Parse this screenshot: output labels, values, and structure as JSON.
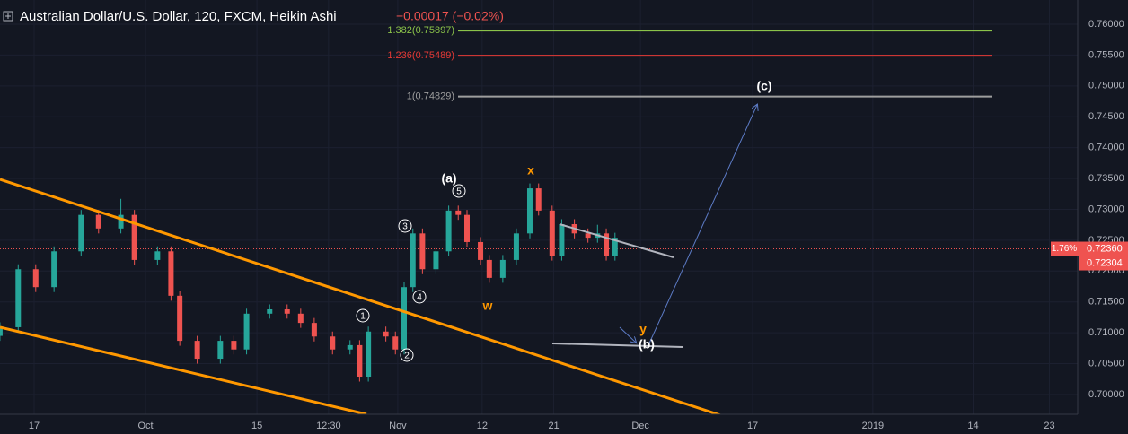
{
  "chart_data": {
    "type": "candlestick",
    "title": "Australian Dollar/U.S. Dollar, 120, FXCM, Heikin Ashi",
    "change": "−0.00017 (−0.02%)",
    "x": [
      -4.3,
      -2.0,
      0.2,
      2.5,
      5.9,
      8.1,
      10.9,
      12.6,
      15.5,
      17.2,
      18.3,
      20.5,
      23.4,
      25.1,
      26.7,
      29.6,
      31.8,
      33.5,
      35.2,
      37.5,
      39.7,
      40.9,
      42.0,
      44.2,
      45.4,
      46.5,
      47.6,
      48.8,
      50.5,
      52.1,
      53.3,
      54.4,
      56.1,
      57.2,
      58.9,
      60.6,
      62.3,
      63.4,
      65.1,
      66.3,
      67.9,
      69.6,
      70.8,
      71.9,
      73.0
    ],
    "open": [
      0.7095,
      0.7109,
      0.7203,
      0.7174,
      0.7232,
      0.7291,
      0.7269,
      0.7291,
      0.7218,
      0.7232,
      0.716,
      0.7087,
      0.7058,
      0.7087,
      0.7073,
      0.7131,
      0.7138,
      0.7131,
      0.7116,
      0.7094,
      0.7073,
      0.708,
      0.7029,
      0.7102,
      0.7094,
      0.7073,
      0.7174,
      0.7261,
      0.7203,
      0.7232,
      0.7298,
      0.7291,
      0.7247,
      0.7218,
      0.7189,
      0.7218,
      0.7261,
      0.7334,
      0.7298,
      0.7225,
      0.7276,
      0.7261,
      0.7254,
      0.7261,
      0.7225
    ],
    "high": [
      0.7117,
      0.7211,
      0.7211,
      0.724,
      0.7299,
      0.7299,
      0.7317,
      0.7299,
      0.724,
      0.724,
      0.7168,
      0.7095,
      0.7095,
      0.7095,
      0.7139,
      0.7146,
      0.7146,
      0.7139,
      0.7124,
      0.7102,
      0.7088,
      0.7088,
      0.711,
      0.711,
      0.7102,
      0.7182,
      0.7269,
      0.7269,
      0.724,
      0.7306,
      0.7306,
      0.7299,
      0.7255,
      0.7226,
      0.7226,
      0.7269,
      0.7342,
      0.7342,
      0.7306,
      0.7284,
      0.7284,
      0.7269,
      0.7275,
      0.7269,
      0.7262
    ],
    "low": [
      0.7087,
      0.7101,
      0.7166,
      0.7166,
      0.7224,
      0.7261,
      0.7261,
      0.721,
      0.721,
      0.7152,
      0.7079,
      0.705,
      0.705,
      0.7065,
      0.7065,
      0.7123,
      0.7123,
      0.7108,
      0.7086,
      0.7065,
      0.7065,
      0.7021,
      0.7021,
      0.7086,
      0.7065,
      0.7065,
      0.7166,
      0.7195,
      0.7195,
      0.7224,
      0.7283,
      0.7239,
      0.721,
      0.7181,
      0.7181,
      0.721,
      0.7253,
      0.729,
      0.7217,
      0.7217,
      0.7253,
      0.7246,
      0.7246,
      0.7217,
      0.7217
    ],
    "close": [
      0.7109,
      0.7203,
      0.7174,
      0.7232,
      0.7291,
      0.7269,
      0.7291,
      0.7218,
      0.7232,
      0.716,
      0.7087,
      0.7058,
      0.7087,
      0.7073,
      0.7131,
      0.7138,
      0.7131,
      0.7116,
      0.7094,
      0.7073,
      0.708,
      0.7029,
      0.7102,
      0.7094,
      0.7073,
      0.7174,
      0.7261,
      0.7203,
      0.7232,
      0.7298,
      0.7291,
      0.7247,
      0.7218,
      0.7189,
      0.7218,
      0.7261,
      0.7334,
      0.7298,
      0.7225,
      0.7276,
      0.7261,
      0.7254,
      0.7261,
      0.7225,
      0.7254
    ],
    "up_color": "#26a69a",
    "down_color": "#ef5350",
    "xlim": [
      -4.29,
      131.15
    ],
    "xticks": [
      {
        "value": 0,
        "label": "17"
      },
      {
        "value": 14,
        "label": "Oct"
      },
      {
        "value": 28,
        "label": "15"
      },
      {
        "value": 37,
        "label": "12:30"
      },
      {
        "value": 45.7,
        "label": "Nov"
      },
      {
        "value": 56.3,
        "label": "12"
      },
      {
        "value": 65.3,
        "label": "21"
      },
      {
        "value": 76.2,
        "label": "Dec"
      },
      {
        "value": 90.3,
        "label": "17"
      },
      {
        "value": 105.4,
        "label": "2019"
      },
      {
        "value": 118,
        "label": "14"
      },
      {
        "value": 127.6,
        "label": "23"
      }
    ],
    "ylim": [
      0.6968,
      0.76392
    ],
    "yticks": [
      {
        "value": 0.7,
        "label": "0.70000"
      },
      {
        "value": 0.705,
        "label": "0.70500"
      },
      {
        "value": 0.71,
        "label": "0.71000"
      },
      {
        "value": 0.715,
        "label": "0.71500"
      },
      {
        "value": 0.72,
        "label": "0.72000"
      },
      {
        "value": 0.725,
        "label": "0.72500"
      },
      {
        "value": 0.73,
        "label": "0.73000"
      },
      {
        "value": 0.735,
        "label": "0.73500"
      },
      {
        "value": 0.74,
        "label": "0.74000"
      },
      {
        "value": 0.745,
        "label": "0.74500"
      },
      {
        "value": 0.75,
        "label": "0.75000"
      },
      {
        "value": 0.755,
        "label": "0.75500"
      },
      {
        "value": 0.76,
        "label": "0.76000"
      }
    ],
    "grid": true,
    "fib_levels": [
      {
        "label": "1.382(0.75897)",
        "value": 0.75897,
        "color": "#8bc34a"
      },
      {
        "label": "1.236(0.75489)",
        "value": 0.75489,
        "color": "#e53935"
      },
      {
        "label": "1(0.74829)",
        "value": 0.74829,
        "color": "#9e9e9e"
      }
    ],
    "last_price": {
      "label": "0.72360",
      "value": 0.7236,
      "color": "#ef5350"
    },
    "close_price": {
      "label": "0.72304",
      "value": 0.72304,
      "color": "#ef5350"
    },
    "percent_label": "1.76%",
    "annotations": [
      "(a)",
      "5",
      "3",
      "4",
      "1",
      "2",
      "x",
      "w",
      "y",
      "(b)",
      "(c)"
    ]
  }
}
